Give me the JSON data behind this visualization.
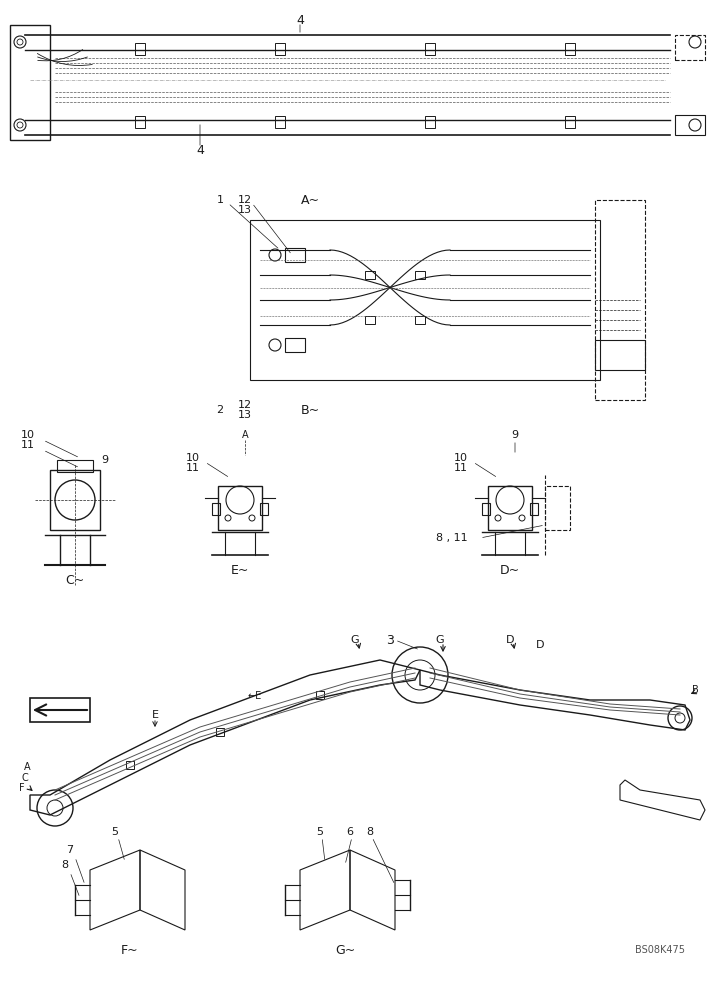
{
  "background_color": "#ffffff",
  "line_color": "#1a1a1a",
  "light_gray": "#888888",
  "medium_gray": "#555555",
  "dark_gray": "#333333",
  "watermark": "BS08K475",
  "labels": {
    "view_A": "A~",
    "view_B": "B~",
    "view_C": "C~",
    "view_D": "D~",
    "view_E": "E~",
    "view_F": "F~",
    "view_G": "G~"
  },
  "part_numbers": [
    "1",
    "2",
    "3",
    "4",
    "5",
    "6",
    "7",
    "8",
    "9",
    "10",
    "11",
    "12",
    "13"
  ],
  "title_fontsize": 9,
  "label_fontsize": 8,
  "num_fontsize": 8
}
